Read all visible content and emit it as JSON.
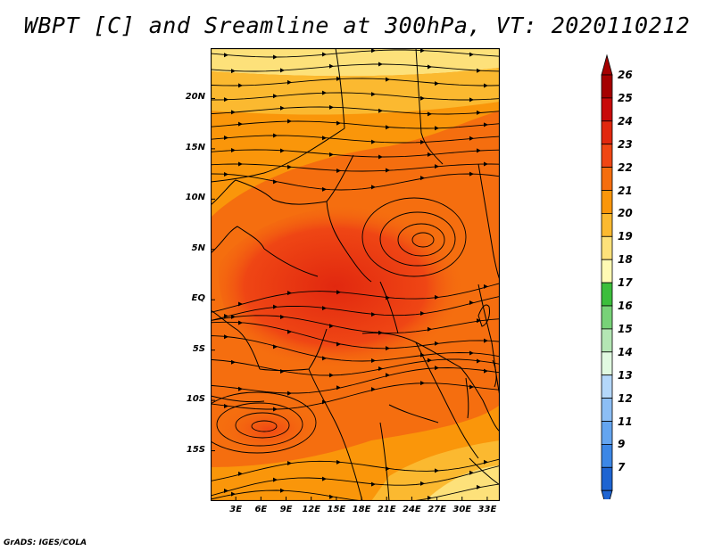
{
  "title": "WBPT [C] and Sreamline at 300hPa, VT: 2020110212",
  "credit": "GrADS: IGES/COLA",
  "map": {
    "lat_ticks": [
      {
        "label": "20N",
        "value": 20
      },
      {
        "label": "15N",
        "value": 15
      },
      {
        "label": "10N",
        "value": 10
      },
      {
        "label": "5N",
        "value": 5
      },
      {
        "label": "EQ",
        "value": 0
      },
      {
        "label": "5S",
        "value": -5
      },
      {
        "label": "10S",
        "value": -10
      },
      {
        "label": "15S",
        "value": -15
      }
    ],
    "lon_ticks": [
      {
        "label": "3E",
        "value": 3
      },
      {
        "label": "6E",
        "value": 6
      },
      {
        "label": "9E",
        "value": 9
      },
      {
        "label": "12E",
        "value": 12
      },
      {
        "label": "15E",
        "value": 15
      },
      {
        "label": "18E",
        "value": 18
      },
      {
        "label": "21E",
        "value": 21
      },
      {
        "label": "24E",
        "value": 24
      },
      {
        "label": "27E",
        "value": 27
      },
      {
        "label": "30E",
        "value": 30
      },
      {
        "label": "33E",
        "value": 33
      }
    ],
    "lon_range": [
      0,
      34.5
    ],
    "lat_range": [
      -20,
      25
    ]
  },
  "colorbar": {
    "levels": [
      {
        "label": "26",
        "color": "#a50000"
      },
      {
        "label": "25",
        "color": "#c80a0a"
      },
      {
        "label": "24",
        "color": "#e1280f"
      },
      {
        "label": "23",
        "color": "#f04614"
      },
      {
        "label": "22",
        "color": "#f56e0f"
      },
      {
        "label": "21",
        "color": "#fa960a"
      },
      {
        "label": "20",
        "color": "#fbb930"
      },
      {
        "label": "19",
        "color": "#fde17a"
      },
      {
        "label": "18",
        "color": "#fffab4"
      },
      {
        "label": "17",
        "color": "#3cbe3c"
      },
      {
        "label": "16",
        "color": "#78d278"
      },
      {
        "label": "15",
        "color": "#b4e6b4"
      },
      {
        "label": "14",
        "color": "#e1fae1"
      },
      {
        "label": "13",
        "color": "#b4d7fa"
      },
      {
        "label": "12",
        "color": "#8cbef5"
      },
      {
        "label": "11",
        "color": "#64a5f0"
      },
      {
        "label": "9",
        "color": "#3c87e6"
      },
      {
        "label": "7",
        "color": "#1e64d2"
      }
    ]
  }
}
